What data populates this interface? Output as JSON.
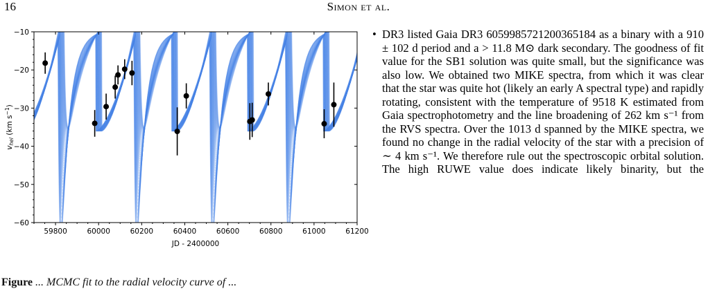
{
  "header": {
    "page_number": "16",
    "running_head": "Simon et al."
  },
  "figure": {
    "caption_fragment_label": "Figure",
    "caption_fragment_text": " ... MCMC fit to the radial velocity curve of ..."
  },
  "chart_data": {
    "type": "scatter",
    "title": "",
    "xlabel": "JD - 2400000",
    "ylabel": "v_hel (km s⁻¹)",
    "xlim": [
      59700,
      61200
    ],
    "ylim": [
      -60,
      -10
    ],
    "xticks": [
      59800,
      60000,
      60200,
      60400,
      60600,
      60800,
      61000,
      61200
    ],
    "yticks": [
      -10,
      -20,
      -30,
      -40,
      -50,
      -60
    ],
    "model_color": "#4a86e8",
    "observations": [
      {
        "x": 59752,
        "y": -18.2,
        "err": 2.8
      },
      {
        "x": 59982,
        "y": -34.0,
        "err": 3.5
      },
      {
        "x": 60035,
        "y": -29.6,
        "err": 3.4
      },
      {
        "x": 60077,
        "y": -24.5,
        "err": 3.0
      },
      {
        "x": 60090,
        "y": -21.3,
        "err": 2.5
      },
      {
        "x": 60121,
        "y": -19.8,
        "err": 2.6
      },
      {
        "x": 60155,
        "y": -20.8,
        "err": 3.2
      },
      {
        "x": 60365,
        "y": -36.1,
        "err": 6.3
      },
      {
        "x": 60407,
        "y": -26.8,
        "err": 3.3
      },
      {
        "x": 60702,
        "y": -33.5,
        "err": 4.8
      },
      {
        "x": 60713,
        "y": -33.1,
        "err": 4.5
      },
      {
        "x": 60788,
        "y": -26.3,
        "err": 3.0
      },
      {
        "x": 61047,
        "y": -34.1,
        "err": 3.8
      },
      {
        "x": 61092,
        "y": -29.1,
        "err": 5.8
      }
    ]
  },
  "body": {
    "paragraph": "DR3 listed Gaia DR3 6059985721200365184 as a binary with a 910 ± 102 d period and a > 11.8 M⊙ dark secondary. The goodness of fit value for the SB1 solution was quite small, but the significance was also low. We obtained two MIKE spectra, from which it was clear that the star was quite hot (likely an early A spectral type) and rapidly rotating, consistent with the temperature of 9518 K estimated from Gaia spectrophotometry and the line broadening of 262 km s⁻¹ from the RVS spectra. Over the 1013 d spanned by the MIKE spectra, we found no change in the radial velocity of the star with a precision of ∼ 4 km s⁻¹. We therefore rule out the spectroscopic orbital solution. The high RUWE value does indicate likely binarity, but the"
  }
}
